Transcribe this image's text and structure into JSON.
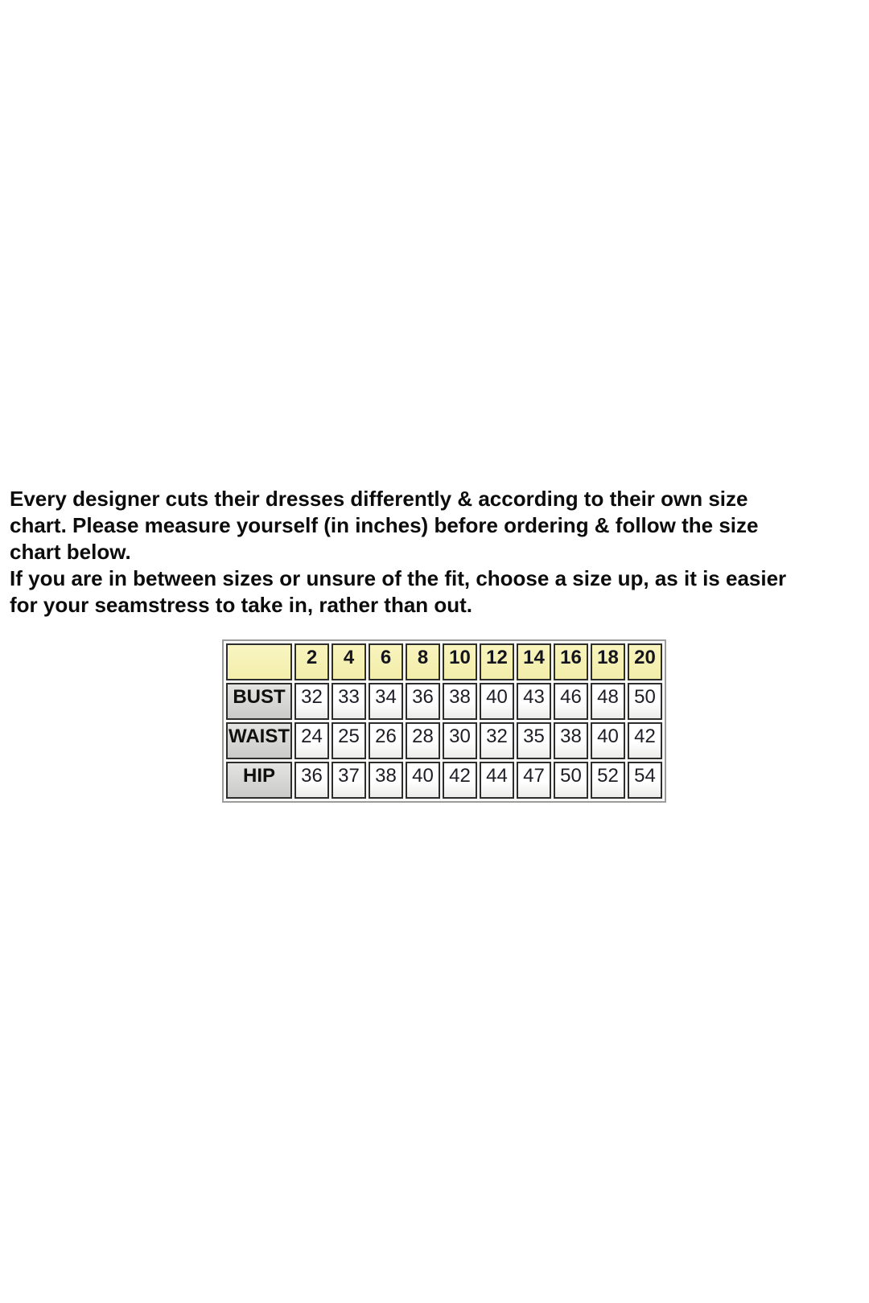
{
  "intro": {
    "lines": [
      "Every designer cuts their dresses differently & according to their own size",
      "chart. Please measure yourself (in inches) before ordering & follow the size",
      "chart below.",
      "If you are in between sizes or unsure of the fit, choose a size up, as it is easier",
      "for your seamstress to take in, rather than out."
    ]
  },
  "size_chart": {
    "corner_label": "",
    "sizes": [
      "2",
      "4",
      "6",
      "8",
      "10",
      "12",
      "14",
      "16",
      "18",
      "20"
    ],
    "rows": [
      {
        "label": "BUST",
        "values": [
          "32",
          "33",
          "34",
          "36",
          "38",
          "40",
          "43",
          "46",
          "48",
          "50"
        ]
      },
      {
        "label": "WAIST",
        "values": [
          "24",
          "25",
          "26",
          "28",
          "30",
          "32",
          "35",
          "38",
          "40",
          "42"
        ]
      },
      {
        "label": "HIP",
        "values": [
          "36",
          "37",
          "38",
          "40",
          "42",
          "44",
          "47",
          "50",
          "52",
          "54"
        ]
      }
    ],
    "colors": {
      "header_bg": "#f6f2b5",
      "label_bg": "#d5d5d3",
      "cell_border": "#2d2d2d",
      "outer_border": "#9c9c9c",
      "text": "#1d1d26"
    }
  }
}
